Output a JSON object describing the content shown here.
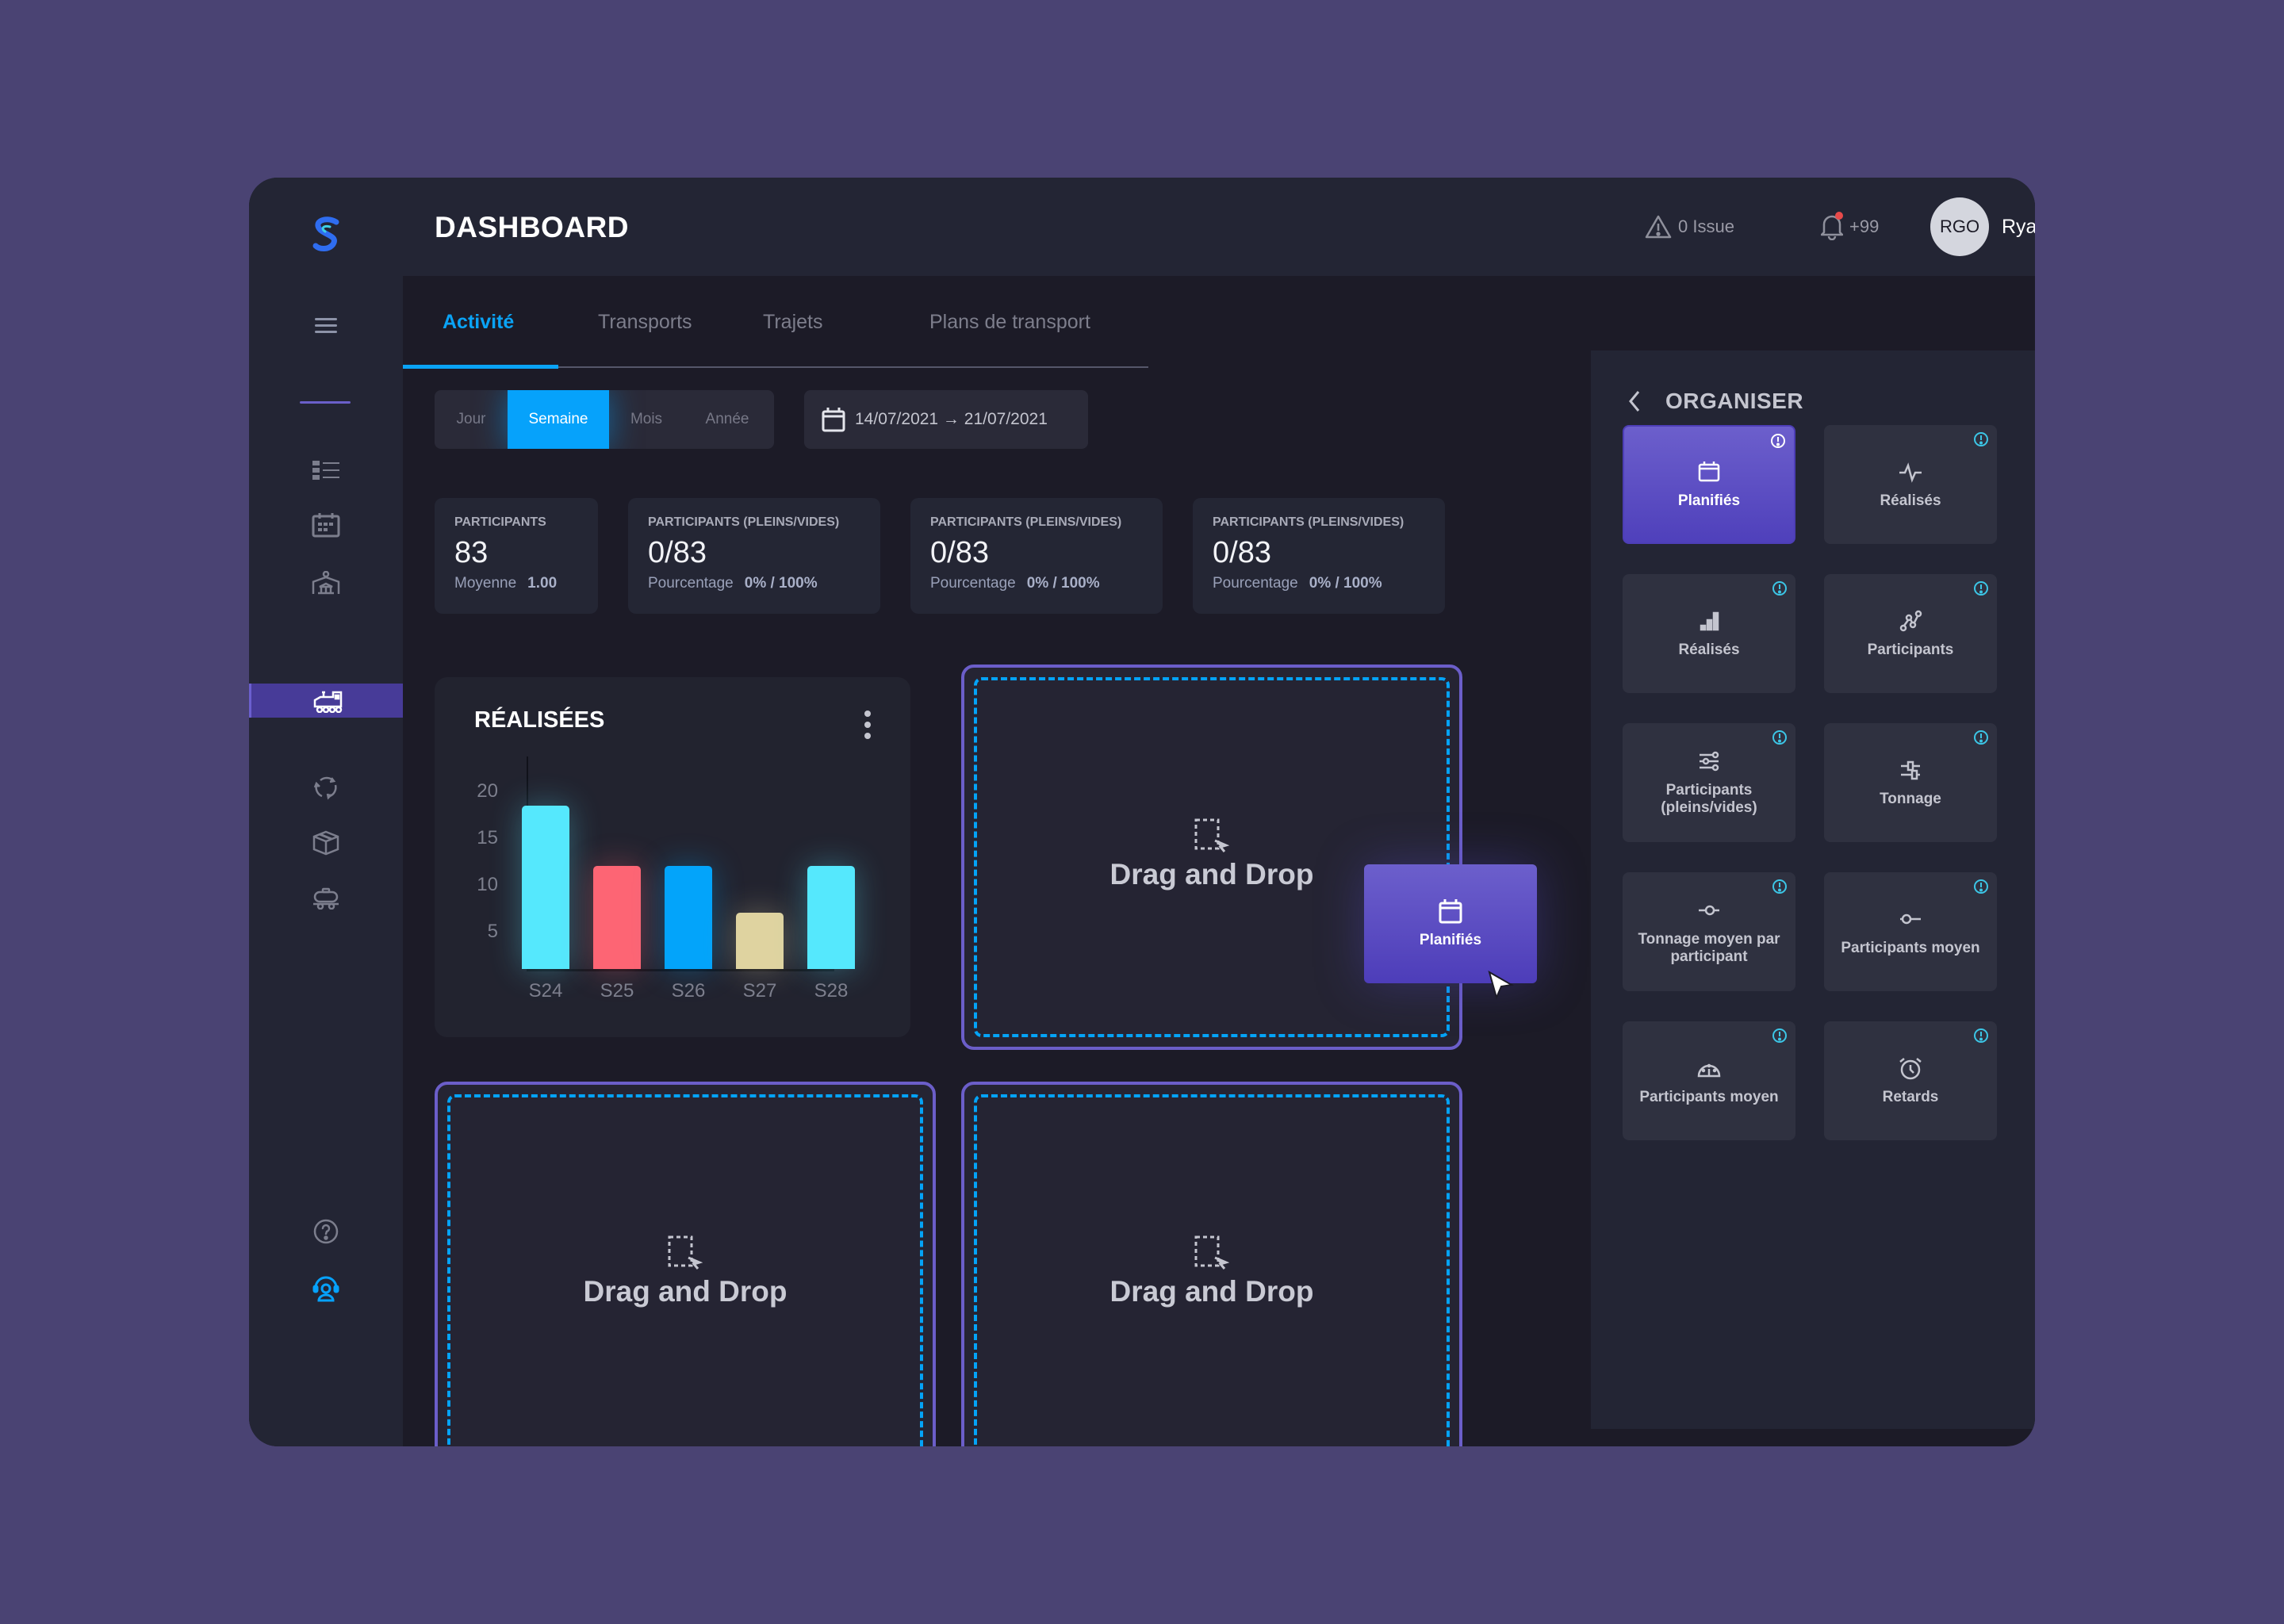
{
  "header": {
    "title": "DASHBOARD",
    "issues": "0 Issue",
    "notifications": "+99",
    "user_initials": "RGO",
    "user_name": "Ryan"
  },
  "tabs": [
    {
      "label": "Activité",
      "active": true
    },
    {
      "label": "Transports",
      "active": false
    },
    {
      "label": "Trajets",
      "active": false
    },
    {
      "label": "Plans de transport",
      "active": false
    }
  ],
  "period": {
    "options": [
      "Jour",
      "Semaine",
      "Mois",
      "Année"
    ],
    "selected": "Semaine",
    "date_range": "14/07/2021 → 21/07/2021"
  },
  "stats": [
    {
      "label": "PARTICIPANTS",
      "value": "83",
      "sub_label": "Moyenne",
      "sub_value": "1.00"
    },
    {
      "label": "PARTICIPANTS (PLEINS/VIDES)",
      "value": "0/83",
      "sub_label": "Pourcentage",
      "sub_value": "0% / 100%"
    },
    {
      "label": "PARTICIPANTS (PLEINS/VIDES)",
      "value": "0/83",
      "sub_label": "Pourcentage",
      "sub_value": "0% / 100%"
    },
    {
      "label": "PARTICIPANTS (PLEINS/VIDES)",
      "value": "0/83",
      "sub_label": "Pourcentage",
      "sub_value": "0% / 100%"
    }
  ],
  "chart_data": {
    "type": "bar",
    "title": "RÉALISÉES",
    "categories": [
      "S24",
      "S25",
      "S26",
      "S27",
      "S28"
    ],
    "values": [
      18.5,
      12,
      12,
      7,
      12
    ],
    "colors": [
      "#55e8fd",
      "#fd6574",
      "#03a4fa",
      "#dfd3a0",
      "#55e8fd"
    ],
    "yticks": [
      5,
      10,
      15,
      20
    ],
    "xlabel": "",
    "ylabel": "",
    "ylim": [
      1,
      23
    ],
    "grid": false,
    "legend": "none"
  },
  "dropzones": {
    "label": "Drag and Drop"
  },
  "drag_item": {
    "label": "Planifiés"
  },
  "panel": {
    "title": "ORGANISER",
    "tiles": [
      {
        "label": "Planifiés",
        "icon": "calendar-icon",
        "active": true
      },
      {
        "label": "Réalisés",
        "icon": "pulse-icon",
        "active": false
      },
      {
        "label": "Réalisés",
        "icon": "bar-chart-icon",
        "active": false
      },
      {
        "label": "Participants",
        "icon": "line-chart-icon",
        "active": false
      },
      {
        "label": "Participants (pleins/vides)",
        "icon": "sliders-icon",
        "active": false
      },
      {
        "label": "Tonnage",
        "icon": "toggle-sliders-icon",
        "active": false
      },
      {
        "label": "Tonnage moyen par participant",
        "icon": "slider-dot-icon",
        "active": false
      },
      {
        "label": "Participants moyen",
        "icon": "slider-dot-left-icon",
        "active": false
      },
      {
        "label": "Participants moyen",
        "icon": "gauge-icon",
        "active": false
      },
      {
        "label": "Retards",
        "icon": "alarm-clock-icon",
        "active": false
      }
    ]
  },
  "colors": {
    "accent": "#06a2fb",
    "purple": "#6b5ec9",
    "info": "#3cc6e6"
  }
}
